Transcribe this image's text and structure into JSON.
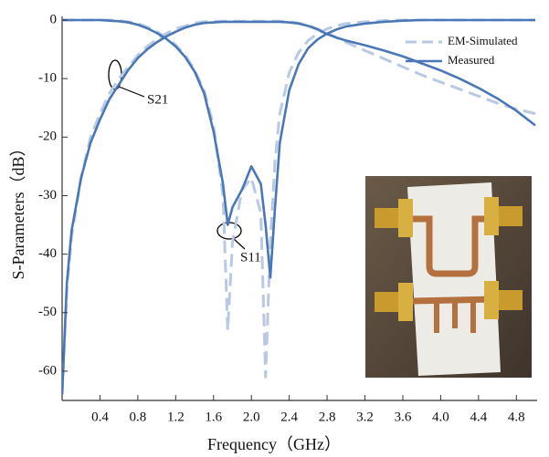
{
  "chart_data": {
    "type": "line",
    "xlabel": "Frequency（GHz）",
    "ylabel": "S-Parameters（dB）",
    "xlim": [
      0,
      5
    ],
    "ylim": [
      -65,
      0
    ],
    "xticks": [
      0.4,
      0.8,
      1.2,
      1.6,
      {
        "value": 2,
        "label": "2.0"
      },
      2.4,
      2.8,
      3.2,
      3.6,
      {
        "value": 4,
        "label": "4.0"
      },
      4.4,
      4.8
    ],
    "yticks": [
      0,
      -10,
      -20,
      -30,
      -40,
      -50,
      -60
    ],
    "legend": "top-right",
    "x": [
      0,
      0.05,
      0.1,
      0.2,
      0.3,
      0.4,
      0.5,
      0.6,
      0.7,
      0.8,
      0.9,
      1.0,
      1.1,
      1.2,
      1.3,
      1.4,
      1.5,
      1.6,
      1.7,
      1.75,
      1.8,
      1.9,
      2.0,
      2.1,
      2.15,
      2.2,
      2.25,
      2.3,
      2.4,
      2.5,
      2.6,
      2.7,
      2.8,
      2.9,
      3.0,
      3.2,
      3.4,
      3.6,
      3.8,
      4.0,
      4.2,
      4.4,
      4.6,
      4.8,
      5.0
    ],
    "series": [
      {
        "name": "EM-Simulated",
        "color": "#b9c9e3",
        "dashed": true,
        "s21": [
          -64,
          -46,
          -37,
          -27,
          -20,
          -16,
          -12.5,
          -10,
          -8,
          -6,
          -4.5,
          -3.3,
          -2.3,
          -1.5,
          -1,
          -0.5,
          -0.3,
          -0.2,
          -0.2,
          -0.2,
          -0.2,
          -0.2,
          -0.2,
          -0.2,
          -0.2,
          -0.2,
          -0.2,
          -0.2,
          -0.3,
          -0.5,
          -0.9,
          -1.5,
          -2.2,
          -3,
          -3.8,
          -5.2,
          -6.6,
          -8,
          -9.4,
          -10.6,
          -11.8,
          -13,
          -14.2,
          -15.2,
          -16
        ],
        "s11": [
          0,
          0,
          0,
          0,
          0,
          0,
          0,
          -0.1,
          -0.3,
          -0.6,
          -1.2,
          -2,
          -3,
          -4.2,
          -6,
          -8.5,
          -12,
          -18,
          -30,
          -53,
          -38,
          -29,
          -27,
          -33,
          -61,
          -38,
          -24,
          -16,
          -9,
          -5.5,
          -3.5,
          -2.3,
          -1.5,
          -1,
          -0.6,
          -0.3,
          -0.1,
          0,
          0,
          0,
          0,
          0,
          0,
          0,
          0
        ]
      },
      {
        "name": "Measured",
        "color": "#4a77b6",
        "dashed": false,
        "s21": [
          -64,
          -45,
          -36,
          -27,
          -21,
          -17,
          -13.5,
          -11,
          -8.5,
          -6.5,
          -5,
          -3.8,
          -2.8,
          -2,
          -1.3,
          -0.8,
          -0.5,
          -0.4,
          -0.3,
          -0.3,
          -0.3,
          -0.3,
          -0.3,
          -0.3,
          -0.3,
          -0.3,
          -0.3,
          -0.3,
          -0.4,
          -0.6,
          -1,
          -1.6,
          -2.4,
          -3,
          -3.5,
          -4.3,
          -5.2,
          -6.2,
          -7.4,
          -8.6,
          -10,
          -11.6,
          -13.4,
          -15.5,
          -18
        ],
        "s11": [
          0,
          0,
          0,
          0,
          0,
          0,
          -0.1,
          -0.2,
          -0.4,
          -0.8,
          -1.4,
          -2.2,
          -3.2,
          -4.5,
          -6.3,
          -8.8,
          -12.5,
          -19,
          -28,
          -35,
          -32,
          -29,
          -25,
          -28,
          -35,
          -44,
          -32,
          -21,
          -12,
          -7.5,
          -4.8,
          -3.3,
          -2.3,
          -1.6,
          -1.1,
          -0.6,
          -0.3,
          -0.1,
          0,
          0,
          0,
          0,
          0,
          0,
          0
        ]
      }
    ],
    "annotations": [
      "S21",
      "S11"
    ]
  }
}
